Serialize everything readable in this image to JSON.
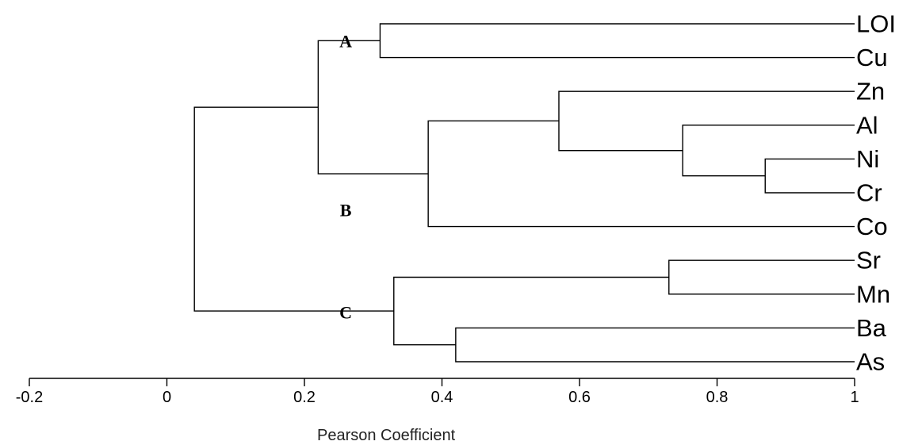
{
  "diagram": {
    "type": "dendrogram",
    "xlabel": "Pearson Coefficient",
    "xlim": [
      -0.2,
      1
    ],
    "xticks": [
      {
        "value": -0.2,
        "label": "-0.2"
      },
      {
        "value": 0,
        "label": "0"
      },
      {
        "value": 0.2,
        "label": "0.2"
      },
      {
        "value": 0.4,
        "label": "0.4"
      },
      {
        "value": 0.6,
        "label": "0.6"
      },
      {
        "value": 0.8,
        "label": "0.8"
      },
      {
        "value": 1,
        "label": "1"
      }
    ],
    "leaves": [
      "LOI",
      "Cu",
      "Zn",
      "Al",
      "Ni",
      "Cr",
      "Co",
      "Sr",
      "Mn",
      "Ba",
      "As"
    ],
    "merges": [
      {
        "id": "n1",
        "children": [
          "Ni",
          "Cr"
        ],
        "value": 0.87
      },
      {
        "id": "n2",
        "children": [
          "Al",
          "n1"
        ],
        "value": 0.75
      },
      {
        "id": "n3",
        "children": [
          "Sr",
          "Mn"
        ],
        "value": 0.73
      },
      {
        "id": "n4",
        "children": [
          "Zn",
          "n2"
        ],
        "value": 0.57
      },
      {
        "id": "n5",
        "children": [
          "Ba",
          "As"
        ],
        "value": 0.42
      },
      {
        "id": "n6",
        "children": [
          "n4",
          "Co"
        ],
        "value": 0.38
      },
      {
        "id": "n7",
        "children": [
          "n3",
          "n5"
        ],
        "value": 0.33
      },
      {
        "id": "n8",
        "children": [
          "LOI",
          "Cu"
        ],
        "value": 0.31
      },
      {
        "id": "n9",
        "children": [
          "n8",
          "n6"
        ],
        "value": 0.22
      },
      {
        "id": "n10",
        "children": [
          "n9",
          "n7"
        ],
        "value": 0.04
      }
    ],
    "clusters": [
      {
        "label": "A",
        "node": "n8",
        "value": 0.26
      },
      {
        "label": "B",
        "node": "n6",
        "value": 0.26
      },
      {
        "label": "C",
        "node": "n7",
        "value": 0.26
      }
    ]
  }
}
